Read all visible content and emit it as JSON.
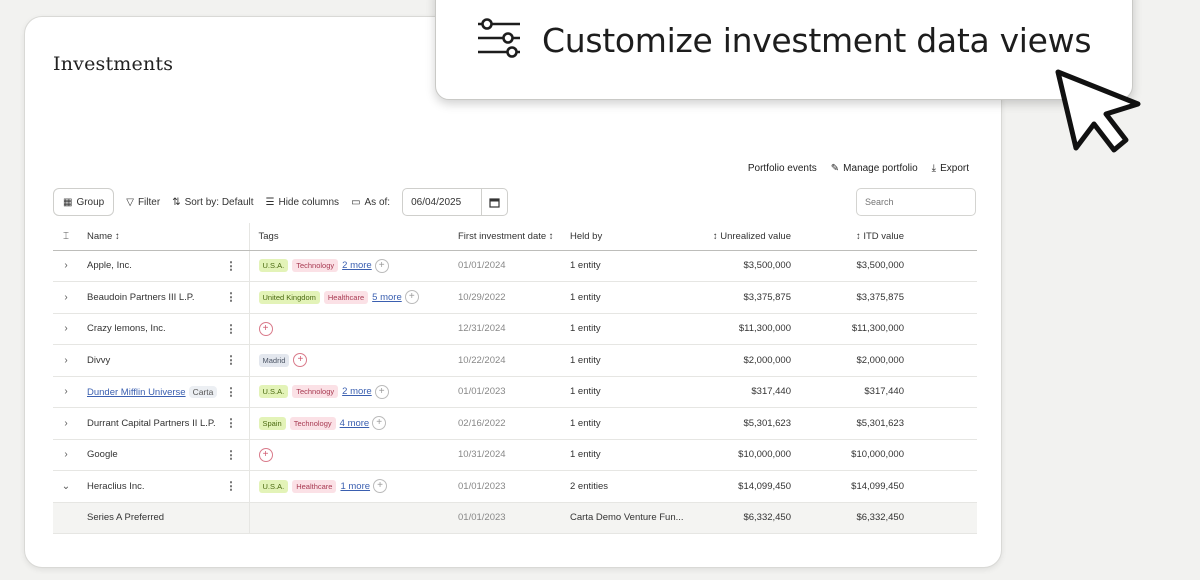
{
  "page": {
    "title": "Investments"
  },
  "top_actions": {
    "portfolio_events": "Portfolio events",
    "manage_portfolio": "Manage portfolio",
    "export": "Export"
  },
  "toolbar": {
    "group": "Group",
    "filter": "Filter",
    "sort": "Sort by: Default",
    "hide_columns": "Hide columns",
    "as_of_label": "As of:",
    "as_of_value": "06/04/2025"
  },
  "search": {
    "placeholder": "Search"
  },
  "table": {
    "headers": {
      "name": "Name ↕",
      "tags": "Tags",
      "first_date": "First investment date ↕",
      "held_by": "Held by",
      "unrealized": "↕ Unrealized value",
      "itd": "↕ ITD value"
    },
    "rows": [
      {
        "name": "Apple, Inc.",
        "tags": [
          "U.S.A.",
          "Technology"
        ],
        "more": "2 more",
        "date": "01/01/2024",
        "held": "1 entity",
        "unrealized": "$3,500,000",
        "itd": "$3,500,000"
      },
      {
        "name": "Beaudoin Partners III L.P.",
        "tags": [
          "United Kingdom",
          "Healthcare"
        ],
        "more": "5 more",
        "date": "10/29/2022",
        "held": "1 entity",
        "unrealized": "$3,375,875",
        "itd": "$3,375,875"
      },
      {
        "name": "Crazy lemons, Inc.",
        "date": "12/31/2024",
        "held": "1 entity",
        "unrealized": "$11,300,000",
        "itd": "$11,300,000"
      },
      {
        "name": "Divvy",
        "tags": [
          "Madrid"
        ],
        "date": "10/22/2024",
        "held": "1 entity",
        "unrealized": "$2,000,000",
        "itd": "$2,000,000"
      },
      {
        "name": "Dunder Mifflin Universe",
        "badge": "Carta",
        "tags": [
          "U.S.A.",
          "Technology"
        ],
        "more": "2 more",
        "date": "01/01/2023",
        "held": "1 entity",
        "unrealized": "$317,440",
        "itd": "$317,440"
      },
      {
        "name": "Durrant Capital Partners II L.P.",
        "tags": [
          "Spain",
          "Technology"
        ],
        "more": "4 more",
        "date": "02/16/2022",
        "held": "1 entity",
        "unrealized": "$5,301,623",
        "itd": "$5,301,623"
      },
      {
        "name": "Google",
        "date": "10/31/2024",
        "held": "1 entity",
        "unrealized": "$10,000,000",
        "itd": "$10,000,000"
      },
      {
        "name": "Heraclius Inc.",
        "tags": [
          "U.S.A.",
          "Healthcare"
        ],
        "more": "1 more",
        "date": "01/01/2023",
        "held": "2 entities",
        "unrealized": "$14,099,450",
        "itd": "$14,099,450"
      },
      {
        "name": "Series A Preferred",
        "date": "01/01/2023",
        "held": "Carta Demo Venture Fun...",
        "unrealized": "$6,332,450",
        "itd": "$6,332,450"
      }
    ]
  },
  "cta": {
    "text": "Customize investment data views"
  },
  "colors": {
    "link": "#3a5fb0",
    "tag_geo": "#e3f3b8",
    "tag_sector": "#fbe1e6"
  }
}
